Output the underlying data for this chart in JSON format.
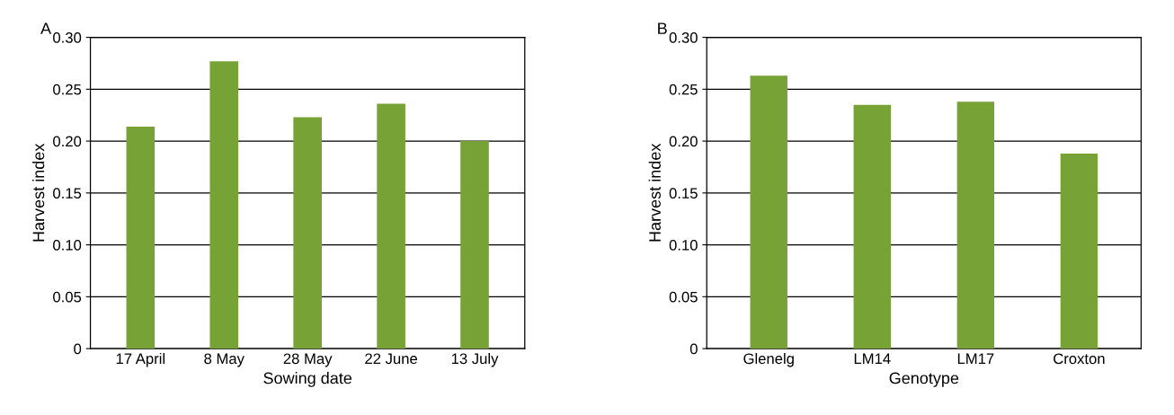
{
  "chart_data": [
    {
      "type": "bar",
      "title": "A",
      "xlabel": "Sowing date",
      "ylabel": "Harvest index",
      "categories": [
        "17 April",
        "8 May",
        "28 May",
        "22 June",
        "13 July"
      ],
      "values": [
        0.214,
        0.277,
        0.223,
        0.236,
        0.2
      ],
      "color": "#77a235",
      "ylim": [
        0,
        0.3
      ],
      "yticks": [
        {
          "value": 0,
          "label": "0"
        },
        {
          "value": 0.05,
          "label": "0.05"
        },
        {
          "value": 0.1,
          "label": "0.10"
        },
        {
          "value": 0.15,
          "label": "0.15"
        },
        {
          "value": 0.2,
          "label": "0.20"
        },
        {
          "value": 0.25,
          "label": "0.25"
        },
        {
          "value": 0.3,
          "label": "0.30"
        }
      ],
      "grid": "y",
      "legend": false
    },
    {
      "type": "bar",
      "title": "B",
      "xlabel": "Genotype",
      "ylabel": "Harvest index",
      "categories": [
        "Glenelg",
        "LM14",
        "LM17",
        "Croxton"
      ],
      "values": [
        0.263,
        0.235,
        0.238,
        0.188
      ],
      "color": "#77a235",
      "ylim": [
        0,
        0.3
      ],
      "yticks": [
        {
          "value": 0,
          "label": "0"
        },
        {
          "value": 0.05,
          "label": "0.05"
        },
        {
          "value": 0.1,
          "label": "0.10"
        },
        {
          "value": 0.15,
          "label": "0.15"
        },
        {
          "value": 0.2,
          "label": "0.20"
        },
        {
          "value": 0.25,
          "label": "0.25"
        },
        {
          "value": 0.3,
          "label": "0.30"
        }
      ],
      "grid": "y",
      "legend": false
    }
  ]
}
